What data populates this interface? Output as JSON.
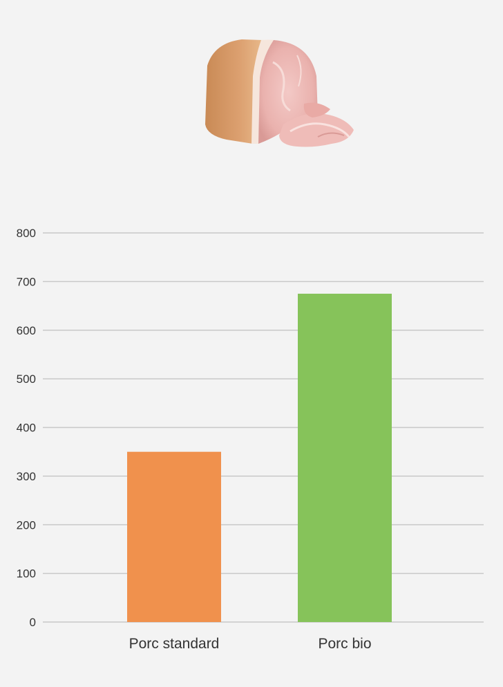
{
  "chart_data": {
    "type": "bar",
    "title": "",
    "xlabel": "",
    "ylabel": "",
    "categories": [
      "Porc standard",
      "Porc bio"
    ],
    "values": [
      350,
      675
    ],
    "bar_colors": [
      "#f0914d",
      "#86c35a"
    ],
    "yticks": [
      0,
      100,
      200,
      300,
      400,
      500,
      600,
      700,
      800
    ],
    "ylim": [
      0,
      800
    ],
    "grid": true,
    "legend": "none"
  },
  "illustration": {
    "icon": "ham-icon"
  },
  "colors": {
    "background": "#f3f3f3",
    "grid": "#c8c8c8",
    "axis_text": "#333333"
  }
}
